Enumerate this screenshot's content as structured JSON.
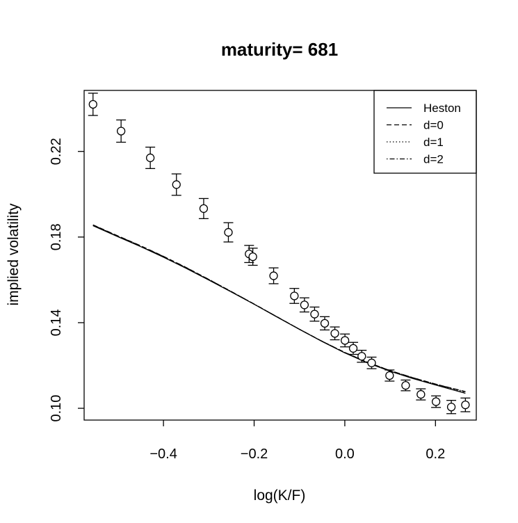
{
  "chart_data": {
    "type": "scatter",
    "title": "maturity= 681",
    "xlabel": "log(K/F)",
    "ylabel": "implied volatility",
    "xlim": [
      -0.575,
      0.29
    ],
    "ylim": [
      0.0945,
      0.2485
    ],
    "x_ticks": [
      -0.4,
      -0.2,
      0.0,
      0.2
    ],
    "x_tick_labels": [
      "−0.4",
      "−0.2",
      "0.0",
      "0.2"
    ],
    "y_ticks": [
      0.1,
      0.14,
      0.18,
      0.22
    ],
    "y_tick_labels": [
      "0.10",
      "0.14",
      "0.18",
      "0.22"
    ],
    "legend_position": "top-right",
    "legend": [
      {
        "label": "Heston",
        "dash": "solid"
      },
      {
        "label": "d=0",
        "dash": "dashed"
      },
      {
        "label": "d=1",
        "dash": "dotted"
      },
      {
        "label": "d=2",
        "dash": "dotdash"
      }
    ],
    "points": {
      "x": [
        -0.5554,
        -0.4935,
        -0.4291,
        -0.3714,
        -0.3113,
        -0.2568,
        -0.2111,
        -0.2029,
        -0.157,
        -0.1113,
        -0.089,
        -0.0667,
        -0.0443,
        -0.022,
        0.0003,
        0.0186,
        0.0374,
        0.0592,
        0.0988,
        0.1342,
        0.1678,
        0.2012,
        0.2349,
        0.266
      ],
      "y": [
        0.242,
        0.2295,
        0.217,
        0.2045,
        0.1933,
        0.1822,
        0.1721,
        0.1708,
        0.1619,
        0.1525,
        0.1483,
        0.144,
        0.1397,
        0.135,
        0.1317,
        0.128,
        0.1243,
        0.1212,
        0.1153,
        0.1107,
        0.1065,
        0.1031,
        0.1006,
        0.1016
      ],
      "err": [
        0.0052,
        0.0052,
        0.005,
        0.005,
        0.0047,
        0.0045,
        0.004,
        0.004,
        0.0037,
        0.0035,
        0.0033,
        0.0033,
        0.0031,
        0.003,
        0.003,
        0.0028,
        0.0028,
        0.0027,
        0.0026,
        0.0025,
        0.0026,
        0.0027,
        0.0031,
        0.0032
      ]
    },
    "series": [
      {
        "name": "Heston",
        "dash": "solid",
        "x": [
          -0.5554,
          -0.5,
          -0.45,
          -0.4,
          -0.35,
          -0.3,
          -0.25,
          -0.2,
          -0.15,
          -0.1,
          -0.05,
          0.0,
          0.05,
          0.1,
          0.15,
          0.2,
          0.266
        ],
        "y": [
          0.1853,
          0.1801,
          0.1755,
          0.1706,
          0.1654,
          0.1599,
          0.1543,
          0.1486,
          0.1427,
          0.1369,
          0.1312,
          0.1259,
          0.1212,
          0.1173,
          0.1139,
          0.1109,
          0.107
        ]
      },
      {
        "name": "d=0",
        "dash": "dashed",
        "x": [
          -0.5554,
          -0.5,
          -0.45,
          -0.4,
          -0.35,
          -0.3,
          -0.25,
          -0.2,
          -0.15,
          -0.1,
          -0.05,
          0.0,
          0.05,
          0.1,
          0.15,
          0.2,
          0.266
        ],
        "y": [
          0.1857,
          0.1805,
          0.1759,
          0.171,
          0.1658,
          0.1602,
          0.1545,
          0.1487,
          0.1428,
          0.1369,
          0.1313,
          0.1261,
          0.1215,
          0.1176,
          0.1143,
          0.1113,
          0.1078
        ]
      },
      {
        "name": "d=1",
        "dash": "dotted",
        "x": [
          -0.5554,
          -0.5,
          -0.45,
          -0.4,
          -0.35,
          -0.3,
          -0.25,
          -0.2,
          -0.15,
          -0.1,
          -0.05,
          0.0,
          0.05,
          0.1,
          0.15,
          0.2,
          0.266
        ],
        "y": [
          0.1855,
          0.1803,
          0.1757,
          0.1708,
          0.1656,
          0.1601,
          0.1544,
          0.1486,
          0.1428,
          0.1369,
          0.1313,
          0.126,
          0.1214,
          0.1175,
          0.1142,
          0.1112,
          0.1075
        ]
      },
      {
        "name": "d=2",
        "dash": "dotdash",
        "x": [
          -0.5554,
          -0.5,
          -0.45,
          -0.4,
          -0.35,
          -0.3,
          -0.25,
          -0.2,
          -0.15,
          -0.1,
          -0.05,
          0.0,
          0.05,
          0.1,
          0.15,
          0.2,
          0.266
        ],
        "y": [
          0.1856,
          0.1804,
          0.1758,
          0.1709,
          0.1657,
          0.1602,
          0.1545,
          0.1487,
          0.1428,
          0.1369,
          0.1313,
          0.1261,
          0.1215,
          0.1176,
          0.1143,
          0.1113,
          0.1077
        ]
      }
    ]
  }
}
